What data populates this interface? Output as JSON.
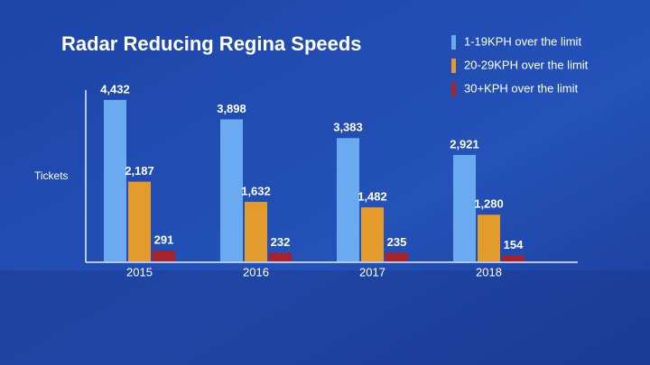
{
  "chart_data": {
    "type": "bar",
    "title": "Radar Reducing Regina Speeds",
    "y_label": "Tickets",
    "categories": [
      "2015",
      "2016",
      "2017",
      "2018"
    ],
    "series": [
      {
        "name": "1-19KPH over the limit",
        "color": "#6aaaf0",
        "values": [
          4432,
          3898,
          3383,
          2921
        ],
        "value_labels": [
          "4,432",
          "3,898",
          "3,383",
          "2,921"
        ]
      },
      {
        "name": "20-29KPH over the limit",
        "color": "#e39b2b",
        "values": [
          2187,
          1632,
          1482,
          1280
        ],
        "value_labels": [
          "2,187",
          "1,632",
          "1,482",
          "1,280"
        ]
      },
      {
        "name": "30+KPH over the limit",
        "color": "#a8222c",
        "values": [
          291,
          232,
          235,
          154
        ],
        "value_labels": [
          "291",
          "232",
          "235",
          "154"
        ]
      }
    ],
    "ylim": [
      0,
      4700
    ],
    "legend": "top-right"
  }
}
